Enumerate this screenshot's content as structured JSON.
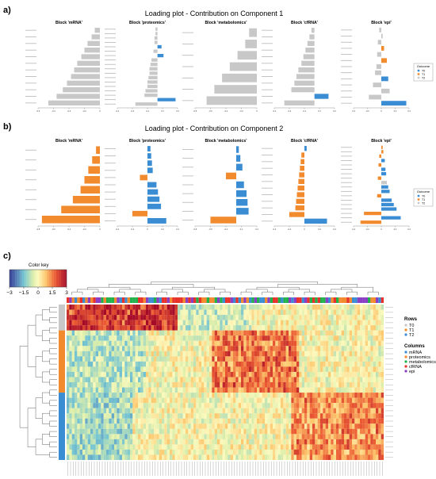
{
  "panels": {
    "a": {
      "letter": "a)",
      "title": "Loading plot - Contribution on Component 1"
    },
    "b": {
      "letter": "b)",
      "title": "Loading plot - Contribution on Component 2"
    },
    "c": {
      "letter": "c)"
    }
  },
  "colors": {
    "T0": "#3a8dd3",
    "T1": "#f28a2e",
    "T2": "#c8c8c8"
  },
  "outcome_legend": {
    "title": "Outcome",
    "items": [
      "T0",
      "T1",
      "T2"
    ]
  },
  "heatmap_legend": {
    "rows_title": "Rows",
    "rows": [
      {
        "label": "T0",
        "color": "#c8c8c8"
      },
      {
        "label": "T1",
        "color": "#f28a2e"
      },
      {
        "label": "T2",
        "color": "#3a8dd3"
      }
    ],
    "cols_title": "Columns",
    "cols": [
      {
        "label": "mRNA",
        "color": "#3a8dd3"
      },
      {
        "label": "proteomics",
        "color": "#f28a2e"
      },
      {
        "label": "metabolomics",
        "color": "#22b24c"
      },
      {
        "label": "cfRNA",
        "color": "#e8312a"
      },
      {
        "label": "epi",
        "color": "#8a3fc4"
      }
    ]
  },
  "color_key": {
    "title": "Color key",
    "ticks": [
      "−3",
      "−1.5",
      "0",
      "1.5",
      "3"
    ]
  },
  "chart_data": [
    {
      "type": "bar",
      "orientation": "horizontal",
      "component": 1,
      "blocks": [
        {
          "name": "Block 'mRNA'",
          "xlim": [
            -0.6,
            0
          ],
          "values": [
            -0.05,
            -0.08,
            -0.12,
            -0.15,
            -0.18,
            -0.22,
            -0.25,
            -0.28,
            -0.32,
            -0.36,
            -0.42,
            -0.5
          ],
          "groups": [
            "T2",
            "T2",
            "T2",
            "T2",
            "T2",
            "T2",
            "T2",
            "T2",
            "T2",
            "T2",
            "T2",
            "T2"
          ]
        },
        {
          "name": "Block 'proteomics'",
          "xlim": [
            -0.4,
            0.2
          ],
          "values": [
            -0.02,
            -0.02,
            -0.03,
            -0.03,
            0.04,
            -0.04,
            0.06,
            -0.06,
            -0.07,
            -0.08,
            -0.08,
            -0.09,
            -0.1,
            -0.1,
            -0.12,
            -0.13,
            0.18,
            -0.22
          ],
          "groups": [
            "T2",
            "T2",
            "T2",
            "T2",
            "T0",
            "T2",
            "T0",
            "T2",
            "T2",
            "T2",
            "T2",
            "T2",
            "T2",
            "T2",
            "T2",
            "T2",
            "T0",
            "T2"
          ]
        },
        {
          "name": "Block 'metabolomics'",
          "xlim": [
            -0.8,
            0
          ],
          "values": [
            -0.1,
            -0.15,
            -0.25,
            -0.35,
            -0.45,
            -0.55,
            -0.65
          ],
          "groups": [
            "T2",
            "T2",
            "T2",
            "T2",
            "T2",
            "T2",
            "T2"
          ]
        },
        {
          "name": "Block 'cfRNA'",
          "xlim": [
            -0.4,
            0.2
          ],
          "values": [
            -0.03,
            -0.05,
            -0.07,
            -0.09,
            -0.11,
            -0.13,
            -0.16,
            -0.18,
            -0.2,
            -0.23,
            0.14,
            -0.3
          ],
          "groups": [
            "T2",
            "T2",
            "T2",
            "T2",
            "T2",
            "T2",
            "T2",
            "T2",
            "T2",
            "T2",
            "T0",
            "T2"
          ]
        },
        {
          "name": "Block 'epi'",
          "xlim": [
            -0.4,
            0.4
          ],
          "values": [
            -0.03,
            0.02,
            -0.05,
            0.04,
            -0.06,
            0.08,
            -0.07,
            -0.09,
            0.1,
            -0.12,
            0.12,
            -0.18,
            0.36
          ],
          "groups": [
            "T2",
            "T2",
            "T2",
            "T1",
            "T2",
            "T1",
            "T2",
            "T2",
            "T0",
            "T2",
            "T2",
            "T2",
            "T0"
          ]
        }
      ]
    },
    {
      "type": "bar",
      "orientation": "horizontal",
      "component": 2,
      "blocks": [
        {
          "name": "Block 'mRNA'",
          "xlim": [
            -0.8,
            0
          ],
          "values": [
            -0.05,
            -0.1,
            -0.15,
            -0.2,
            -0.25,
            -0.35,
            -0.5,
            -0.75
          ],
          "groups": [
            "T1",
            "T1",
            "T1",
            "T1",
            "T1",
            "T1",
            "T1",
            "T1"
          ]
        },
        {
          "name": "Block 'proteomics'",
          "xlim": [
            -0.4,
            0.4
          ],
          "values": [
            0.04,
            0.05,
            0.06,
            0.07,
            -0.1,
            0.12,
            0.14,
            0.16,
            0.18,
            -0.2,
            0.25
          ],
          "groups": [
            "T0",
            "T0",
            "T0",
            "T0",
            "T1",
            "T0",
            "T0",
            "T0",
            "T0",
            "T1",
            "T0"
          ]
        },
        {
          "name": "Block 'metabolomics'",
          "xlim": [
            -0.8,
            0.4
          ],
          "values": [
            0.05,
            0.08,
            0.12,
            -0.2,
            0.15,
            0.2,
            0.22,
            0.24,
            -0.5
          ],
          "groups": [
            "T0",
            "T0",
            "T0",
            "T1",
            "T0",
            "T0",
            "T0",
            "T0",
            "T1"
          ]
        },
        {
          "name": "Block 'cfRNA'",
          "xlim": [
            -0.4,
            0.4
          ],
          "values": [
            0.03,
            -0.04,
            -0.05,
            -0.06,
            -0.07,
            -0.08,
            -0.09,
            -0.1,
            -0.11,
            -0.12,
            -0.2,
            0.3
          ],
          "groups": [
            "T0",
            "T1",
            "T1",
            "T1",
            "T1",
            "T1",
            "T1",
            "T1",
            "T1",
            "T1",
            "T1",
            "T0"
          ]
        },
        {
          "name": "Block 'epi'",
          "xlim": [
            -0.4,
            0.4
          ],
          "values": [
            0.02,
            0.03,
            -0.03,
            0.05,
            -0.04,
            0.06,
            0.07,
            -0.05,
            0.08,
            0.1,
            0.12,
            -0.06,
            0.15,
            0.18,
            0.22,
            -0.25,
            0.28,
            -0.3
          ],
          "groups": [
            "T1",
            "T1",
            "T1",
            "T0",
            "T1",
            "T0",
            "T0",
            "T1",
            "T2",
            "T0",
            "T0",
            "T1",
            "T0",
            "T0",
            "T0",
            "T1",
            "T0",
            "T1"
          ]
        }
      ]
    },
    {
      "type": "heatmap",
      "color_range": [
        -3,
        3
      ],
      "row_groups": [
        {
          "group": "T0",
          "rows": 5
        },
        {
          "group": "T1",
          "rows": 12
        },
        {
          "group": "T2",
          "rows": 13
        }
      ],
      "column_count": 120,
      "column_types": [
        "mRNA",
        "proteomics",
        "metabolomics",
        "cfRNA",
        "epi"
      ]
    }
  ]
}
